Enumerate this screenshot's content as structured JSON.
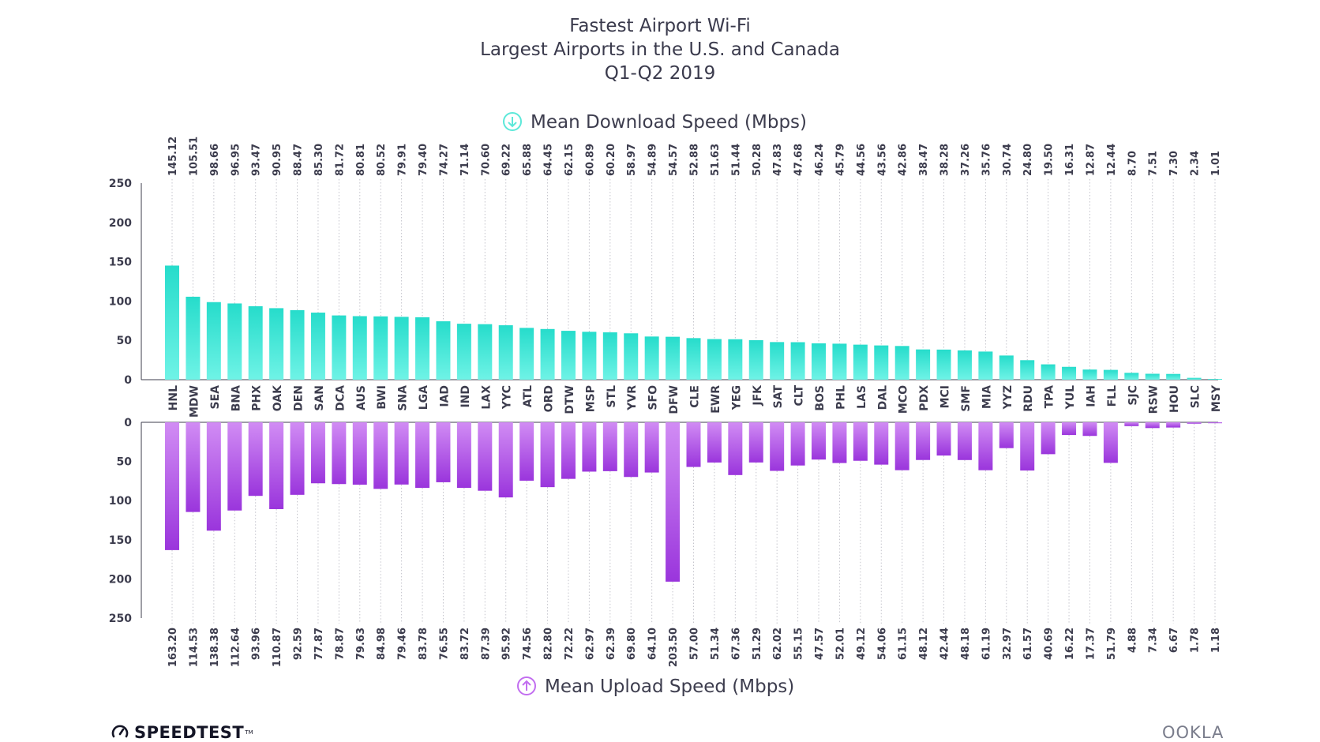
{
  "chart_data": {
    "type": "bar",
    "title": [
      "Fastest Airport Wi-Fi",
      "Largest Airports in the U.S. and Canada",
      "Q1-Q2 2019"
    ],
    "categories": [
      "HNL",
      "MDW",
      "SEA",
      "BNA",
      "PHX",
      "OAK",
      "DEN",
      "SAN",
      "DCA",
      "AUS",
      "BWI",
      "SNA",
      "LGA",
      "IAD",
      "IND",
      "LAX",
      "YYC",
      "ATL",
      "ORD",
      "DTW",
      "MSP",
      "STL",
      "YVR",
      "SFO",
      "DFW",
      "CLE",
      "EWR",
      "YEG",
      "JFK",
      "SAT",
      "CLT",
      "BOS",
      "PHL",
      "LAS",
      "DAL",
      "MCO",
      "PDX",
      "MCI",
      "SMF",
      "MIA",
      "YYZ",
      "RDU",
      "TPA",
      "YUL",
      "IAH",
      "FLL",
      "SJC",
      "RSW",
      "HOU",
      "SLC",
      "MSY"
    ],
    "series": [
      {
        "name": "Mean Download Speed (Mbps)",
        "color": "#2de2cf",
        "values": [
          145.12,
          105.51,
          98.66,
          96.95,
          93.47,
          90.95,
          88.47,
          85.3,
          81.72,
          80.81,
          80.52,
          79.91,
          79.4,
          74.27,
          71.14,
          70.6,
          69.22,
          65.88,
          64.45,
          62.15,
          60.89,
          60.2,
          58.97,
          54.89,
          54.57,
          52.88,
          51.63,
          51.44,
          50.28,
          47.83,
          47.68,
          46.24,
          45.79,
          44.56,
          43.56,
          42.86,
          38.47,
          38.28,
          37.26,
          35.76,
          30.74,
          24.8,
          19.5,
          16.31,
          12.87,
          12.44,
          8.7,
          7.51,
          7.3,
          2.34,
          1.01
        ],
        "labels": [
          "145.12",
          "105.51",
          "98.66",
          "96.95",
          "93.47",
          "90.95",
          "88.47",
          "85.30",
          "81.72",
          "80.81",
          "80.52",
          "79.91",
          "79.40",
          "74.27",
          "71.14",
          "70.60",
          "69.22",
          "65.88",
          "64.45",
          "62.15",
          "60.89",
          "60.20",
          "58.97",
          "54.89",
          "54.57",
          "52.88",
          "51.63",
          "51.44",
          "50.28",
          "47.83",
          "47.68",
          "46.24",
          "45.79",
          "44.56",
          "43.56",
          "42.86",
          "38.47",
          "38.28",
          "37.26",
          "35.76",
          "30.74",
          "24.80",
          "19.50",
          "16.31",
          "12.87",
          "12.44",
          "8.70",
          "7.51",
          "7.30",
          "2.34",
          "1.01"
        ]
      },
      {
        "name": "Mean Upload Speed (Mbps)",
        "color": "#a544e0",
        "values": [
          163.2,
          114.53,
          138.38,
          112.64,
          93.96,
          110.87,
          92.59,
          77.87,
          78.87,
          79.63,
          84.98,
          79.46,
          83.78,
          76.55,
          83.72,
          87.39,
          95.92,
          74.56,
          82.8,
          72.22,
          62.97,
          62.39,
          69.8,
          64.1,
          203.5,
          57.0,
          51.34,
          67.36,
          51.29,
          62.02,
          55.15,
          47.57,
          52.01,
          49.12,
          54.06,
          61.15,
          48.12,
          42.44,
          48.18,
          61.19,
          32.97,
          61.57,
          40.69,
          16.22,
          17.37,
          51.79,
          4.88,
          7.34,
          6.67,
          1.78,
          1.18
        ],
        "labels": [
          "163.20",
          "114.53",
          "138.38",
          "112.64",
          "93.96",
          "110.87",
          "92.59",
          "77.87",
          "78.87",
          "79.63",
          "84.98",
          "79.46",
          "83.78",
          "76.55",
          "83.72",
          "87.39",
          "95.92",
          "74.56",
          "82.80",
          "72.22",
          "62.97",
          "62.39",
          "69.80",
          "64.10",
          "203.50",
          "57.00",
          "51.34",
          "67.36",
          "51.29",
          "62.02",
          "55.15",
          "47.57",
          "52.01",
          "49.12",
          "54.06",
          "61.15",
          "48.12",
          "42.44",
          "48.18",
          "61.19",
          "32.97",
          "61.57",
          "40.69",
          "16.22",
          "17.37",
          "51.79",
          "4.88",
          "7.34",
          "6.67",
          "1.78",
          "1.18"
        ]
      }
    ],
    "download_axis": {
      "ylim": [
        0,
        250
      ],
      "ticks": [
        "0",
        "50",
        "100",
        "150",
        "200",
        "250"
      ]
    },
    "upload_axis": {
      "ylim": [
        0,
        250
      ],
      "ticks": [
        "0",
        "50",
        "100",
        "150",
        "200",
        "250"
      ],
      "inverted": true
    },
    "grid": false,
    "legend": "series labels above and below the chart"
  },
  "icons": {
    "download": "arrow-down-circle-icon",
    "upload": "arrow-up-circle-icon"
  },
  "footer": {
    "left_logo": "SPEEDTEST",
    "right_logo": "OOKLA"
  }
}
